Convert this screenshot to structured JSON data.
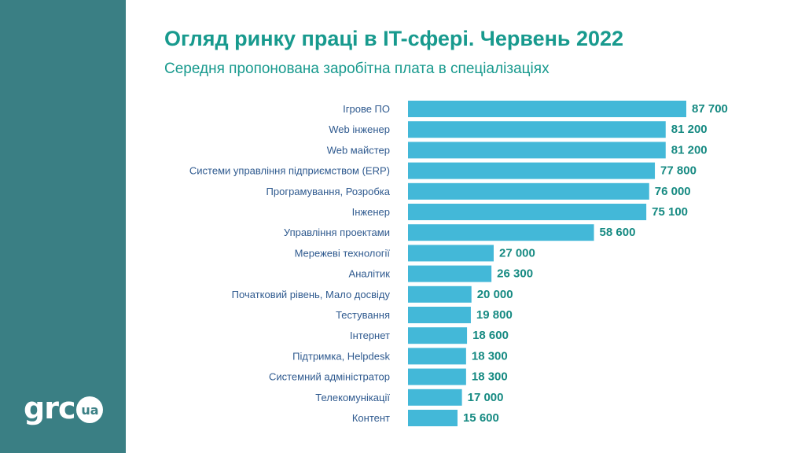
{
  "header": {
    "title": "Огляд ринку праці в IT-сфері. Червень 2022",
    "subtitle": "Середня пропонована заробітна плата в спеціалізаціях"
  },
  "logo": {
    "text": "grc",
    "badge": "ua"
  },
  "colors": {
    "sidebar": "#3a7f84",
    "bar": "#43b8d8",
    "title": "#189a8e",
    "value_label": "#168a82",
    "category_label": "#2f5a8f"
  },
  "chart_data": {
    "type": "bar",
    "orientation": "horizontal",
    "title": "Огляд ринку праці в IT-сфері. Червень 2022",
    "subtitle": "Середня пропонована заробітна плата в спеціалізаціях",
    "categories": [
      "Ігрове ПО",
      "Web інженер",
      "Web майстер",
      "Системи управління підприємством (ERP)",
      "Програмування, Розробка",
      "Інженер",
      "Управління проектами",
      "Мережеві технології",
      "Аналітик",
      "Початковий рівень, Мало досвіду",
      "Тестування",
      "Інтернет",
      "Підтримка, Helpdesk",
      "Системний адміністратор",
      "Телекомунікації",
      "Контент"
    ],
    "values": [
      87700,
      81200,
      81200,
      77800,
      76000,
      75100,
      58600,
      27000,
      26300,
      20000,
      19800,
      18600,
      18300,
      18300,
      17000,
      15600
    ],
    "value_labels": [
      "87 700",
      "81 200",
      "81 200",
      "77 800",
      "76 000",
      "75 100",
      "58 600",
      "27 000",
      "26 300",
      "20 000",
      "19 800",
      "18 600",
      "18 300",
      "18 300",
      "17 000",
      "15 600"
    ],
    "xlim": [
      0,
      87700
    ],
    "grid": false,
    "legend": "none",
    "xlabel": "",
    "ylabel": ""
  }
}
